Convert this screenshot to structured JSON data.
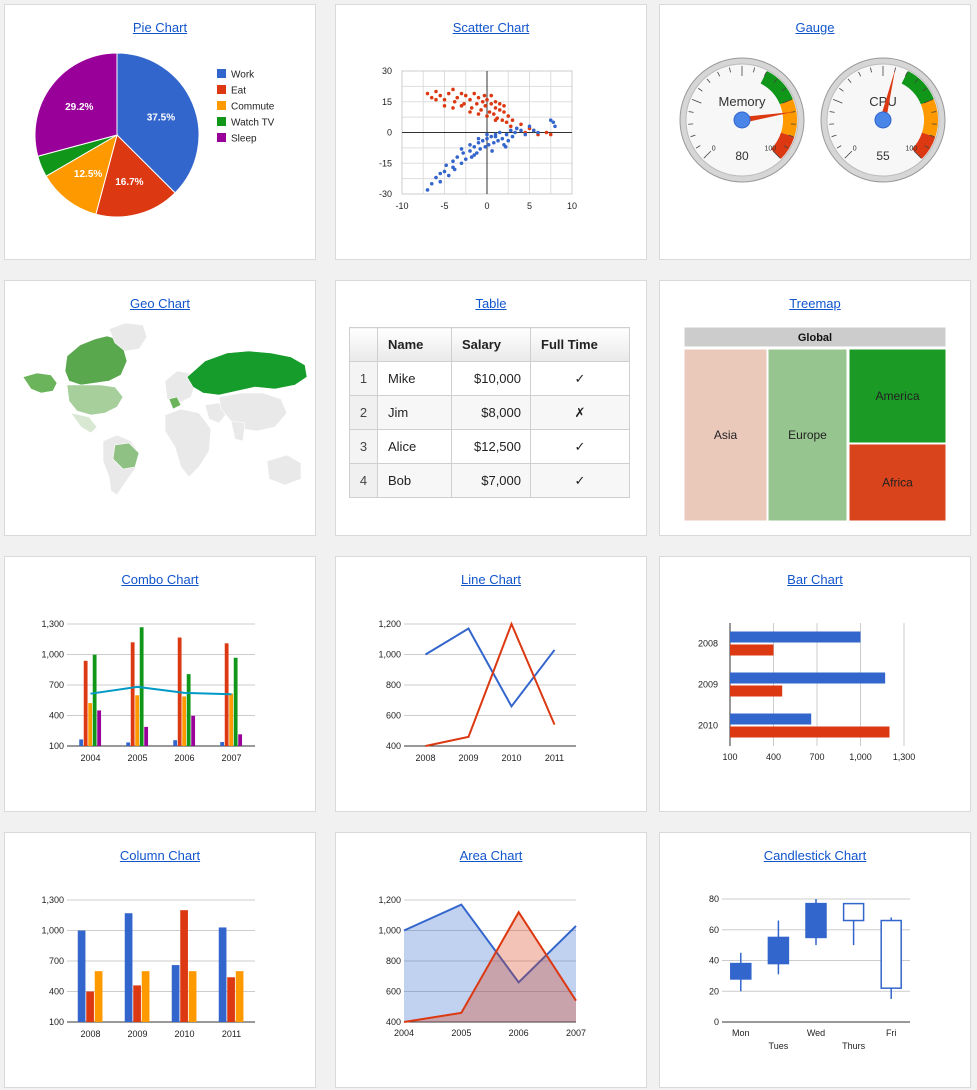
{
  "titles": {
    "pie": "Pie Chart",
    "scatter": "Scatter Chart",
    "gauge": "Gauge",
    "geo": "Geo Chart",
    "table": "Table",
    "treemap": "Treemap",
    "combo": "Combo Chart",
    "line": "Line Chart",
    "bar": "Bar Chart",
    "column": "Column Chart",
    "area": "Area Chart",
    "candlestick": "Candlestick Chart"
  },
  "colors": {
    "blue": "#3366cc",
    "red": "#dc3912",
    "orange": "#ff9900",
    "green": "#109618",
    "purple": "#990099",
    "cyan": "#0099c6",
    "link": "#1155cc"
  },
  "table": {
    "headers": [
      "Name",
      "Salary",
      "Full Time"
    ],
    "rows": [
      {
        "idx": "1",
        "name": "Mike",
        "salary": "$10,000",
        "full": "✓"
      },
      {
        "idx": "2",
        "name": "Jim",
        "salary": "$8,000",
        "full": "✗"
      },
      {
        "idx": "3",
        "name": "Alice",
        "salary": "$12,500",
        "full": "✓"
      },
      {
        "idx": "4",
        "name": "Bob",
        "salary": "$7,000",
        "full": "✓"
      }
    ]
  },
  "chart_data": [
    {
      "id": "pie",
      "type": "pie",
      "slices": [
        {
          "label": "Work",
          "value": 37.5,
          "color": "#3366cc"
        },
        {
          "label": "Eat",
          "value": 16.7,
          "color": "#dc3912"
        },
        {
          "label": "Commute",
          "value": 12.5,
          "color": "#ff9900"
        },
        {
          "label": "Watch TV",
          "value": 4.2,
          "color": "#109618"
        },
        {
          "label": "Sleep",
          "value": 29.2,
          "color": "#990099"
        }
      ],
      "slice_labels": [
        "37.5%",
        "16.7%",
        "12.5%",
        "",
        "29.2%"
      ],
      "legend": "right"
    },
    {
      "id": "scatter",
      "type": "scatter",
      "xlim": [
        -10,
        10
      ],
      "ylim": [
        -30,
        30
      ],
      "xticks": [
        "-10",
        "-5",
        "0",
        "5",
        "10"
      ],
      "yticks": [
        "30",
        "15",
        "0",
        "-15",
        "-30"
      ],
      "series": [
        {
          "color": "#dc3912",
          "points": [
            [
              -7,
              19
            ],
            [
              -6.5,
              17
            ],
            [
              -6,
              20
            ],
            [
              -5.5,
              18
            ],
            [
              -5,
              16
            ],
            [
              -4.5,
              19
            ],
            [
              -4,
              21
            ],
            [
              -3.8,
              15
            ],
            [
              -3.5,
              17
            ],
            [
              -3,
              19
            ],
            [
              -2.7,
              14
            ],
            [
              -2.5,
              18
            ],
            [
              -2,
              16
            ],
            [
              -1.8,
              12
            ],
            [
              -1.5,
              19
            ],
            [
              -1.2,
              14
            ],
            [
              -1,
              17
            ],
            [
              -0.7,
              11
            ],
            [
              -0.5,
              15
            ],
            [
              -0.2,
              13
            ],
            [
              0,
              16
            ],
            [
              0.3,
              10
            ],
            [
              0.5,
              14
            ],
            [
              0.8,
              9
            ],
            [
              1,
              12
            ],
            [
              1.2,
              7
            ],
            [
              1.5,
              11
            ],
            [
              1.8,
              6
            ],
            [
              2,
              10
            ],
            [
              2.3,
              5
            ],
            [
              2.5,
              8
            ],
            [
              2.8,
              3
            ],
            [
              3,
              6
            ],
            [
              3.5,
              2
            ],
            [
              4,
              4
            ],
            [
              4.5,
              0
            ],
            [
              5,
              2
            ],
            [
              5.5,
              1
            ],
            [
              6,
              -1
            ],
            [
              7,
              0
            ],
            [
              7.5,
              -1
            ],
            [
              -3,
              13
            ],
            [
              -2,
              10
            ],
            [
              -1,
              9
            ],
            [
              0,
              8
            ],
            [
              1,
              6
            ],
            [
              -4,
              12
            ],
            [
              -5,
              13
            ],
            [
              -6,
              16
            ],
            [
              0.5,
              18
            ],
            [
              1,
              15
            ],
            [
              2,
              13
            ],
            [
              -0.3,
              18
            ],
            [
              1.5,
              14
            ]
          ]
        },
        {
          "color": "#3366cc",
          "points": [
            [
              -7,
              -28
            ],
            [
              -6.5,
              -25
            ],
            [
              -6,
              -22
            ],
            [
              -5.5,
              -24
            ],
            [
              -5,
              -19
            ],
            [
              -4.8,
              -16
            ],
            [
              -4.5,
              -21
            ],
            [
              -4,
              -14
            ],
            [
              -3.8,
              -18
            ],
            [
              -3.5,
              -12
            ],
            [
              -3,
              -15
            ],
            [
              -2.8,
              -10
            ],
            [
              -2.5,
              -13
            ],
            [
              -2,
              -9
            ],
            [
              -1.8,
              -12
            ],
            [
              -1.5,
              -7
            ],
            [
              -1.2,
              -10
            ],
            [
              -1,
              -5
            ],
            [
              -0.8,
              -8
            ],
            [
              -0.5,
              -4
            ],
            [
              -0.2,
              -7
            ],
            [
              0,
              -3
            ],
            [
              0.2,
              -6
            ],
            [
              0.5,
              -2
            ],
            [
              0.8,
              -5
            ],
            [
              1,
              -1
            ],
            [
              1.3,
              -4
            ],
            [
              1.5,
              0
            ],
            [
              1.8,
              -3
            ],
            [
              2,
              -6
            ],
            [
              2.3,
              -1
            ],
            [
              2.5,
              -4
            ],
            [
              2.8,
              1
            ],
            [
              3,
              -2
            ],
            [
              3.3,
              0
            ],
            [
              3.5,
              2
            ],
            [
              4,
              1
            ],
            [
              4.5,
              -1
            ],
            [
              5,
              3
            ],
            [
              5.5,
              1
            ],
            [
              6,
              0
            ],
            [
              7.5,
              6
            ],
            [
              8,
              3
            ],
            [
              7.8,
              5
            ],
            [
              -3,
              -8
            ],
            [
              -2,
              -6
            ],
            [
              -1,
              -3
            ],
            [
              0,
              -1
            ],
            [
              1,
              -2
            ],
            [
              -4,
              -17
            ],
            [
              -5.5,
              -20
            ],
            [
              -1.5,
              -11
            ],
            [
              0.6,
              -9
            ],
            [
              2.2,
              -7
            ]
          ]
        }
      ]
    },
    {
      "id": "gauge",
      "type": "gauge",
      "min": 0,
      "max": 100,
      "gauges": [
        {
          "label": "Memory",
          "value": 80
        },
        {
          "label": "CPU",
          "value": 55
        }
      ],
      "tick_labels": [
        "0",
        "100"
      ],
      "bands": [
        {
          "from": 75,
          "to": 90,
          "color": "orange"
        },
        {
          "from": 90,
          "to": 100,
          "color": "red"
        },
        {
          "from": 60,
          "to": 75,
          "color": "green"
        }
      ]
    },
    {
      "id": "treemap",
      "type": "treemap",
      "root": "Global",
      "nodes": [
        {
          "label": "Asia",
          "color": "#eac9bb"
        },
        {
          "label": "Europe",
          "color": "#97c58f"
        },
        {
          "label": "America",
          "color": "#1c9a26"
        },
        {
          "label": "Africa",
          "color": "#d9441c"
        }
      ]
    },
    {
      "id": "combo",
      "type": "bar",
      "categories": [
        "2004",
        "2005",
        "2006",
        "2007"
      ],
      "ylim": [
        100,
        1300
      ],
      "yticks": [
        "1,300",
        "1,000",
        "700",
        "400",
        "100"
      ],
      "series": [
        {
          "color": "#3366cc",
          "values": [
            165,
            135,
            157,
            139
          ]
        },
        {
          "color": "#dc3912",
          "values": [
            938,
            1120,
            1167,
            1110
          ]
        },
        {
          "color": "#ff9900",
          "values": [
            522,
            599,
            587,
            615
          ]
        },
        {
          "color": "#109618",
          "values": [
            998,
            1268,
            807,
            968
          ]
        },
        {
          "color": "#990099",
          "values": [
            450,
            288,
            397,
            215
          ]
        }
      ],
      "line": {
        "color": "#0099c6",
        "values": [
          614.6,
          682,
          623,
          609.4
        ]
      }
    },
    {
      "id": "line",
      "type": "line",
      "categories": [
        "2008",
        "2009",
        "2010",
        "2011"
      ],
      "ylim": [
        400,
        1200
      ],
      "yticks": [
        "1,200",
        "1,000",
        "800",
        "600",
        "400"
      ],
      "series": [
        {
          "color": "#3366cc",
          "values": [
            1000,
            1170,
            660,
            1030
          ]
        },
        {
          "color": "#dc3912",
          "values": [
            400,
            460,
            1200,
            540
          ]
        }
      ]
    },
    {
      "id": "barh",
      "type": "bar",
      "categories": [
        "2008",
        "2009",
        "2010"
      ],
      "xlim": [
        100,
        1300
      ],
      "xticks": [
        "100",
        "400",
        "700",
        "1,000",
        "1,300"
      ],
      "series": [
        {
          "color": "#3366cc",
          "values": [
            1000,
            1170,
            660
          ]
        },
        {
          "color": "#dc3912",
          "values": [
            400,
            460,
            1200
          ]
        }
      ]
    },
    {
      "id": "column",
      "type": "bar",
      "categories": [
        "2008",
        "2009",
        "2010",
        "2011"
      ],
      "ylim": [
        100,
        1300
      ],
      "yticks": [
        "1,300",
        "1,000",
        "700",
        "400",
        "100"
      ],
      "series": [
        {
          "color": "#3366cc",
          "values": [
            1000,
            1170,
            660,
            1030
          ]
        },
        {
          "color": "#dc3912",
          "values": [
            400,
            460,
            1200,
            540
          ]
        },
        {
          "color": "#ff9900",
          "values": [
            600,
            600,
            600,
            600
          ]
        }
      ]
    },
    {
      "id": "area",
      "type": "area",
      "categories": [
        "2004",
        "2005",
        "2006",
        "2007"
      ],
      "ylim": [
        400,
        1200
      ],
      "yticks": [
        "1,200",
        "1,000",
        "800",
        "600",
        "400"
      ],
      "series": [
        {
          "color": "#3366cc",
          "values": [
            1000,
            1170,
            660,
            1030
          ]
        },
        {
          "color": "#dc3912",
          "values": [
            400,
            460,
            1120,
            540
          ]
        }
      ]
    },
    {
      "id": "candlestick",
      "type": "candlestick",
      "categories": [
        "Mon",
        "Tues",
        "Wed",
        "Thurs",
        "Fri"
      ],
      "ylim": [
        0,
        80
      ],
      "yticks": [
        "80",
        "60",
        "40",
        "20",
        "0"
      ],
      "candles": [
        {
          "low": 20,
          "open": 28,
          "close": 38,
          "high": 45
        },
        {
          "low": 31,
          "open": 38,
          "close": 55,
          "high": 66
        },
        {
          "low": 50,
          "open": 55,
          "close": 77,
          "high": 80
        },
        {
          "low": 50,
          "open": 77,
          "close": 66,
          "high": 77
        },
        {
          "low": 15,
          "open": 66,
          "close": 22,
          "high": 68
        }
      ]
    }
  ]
}
